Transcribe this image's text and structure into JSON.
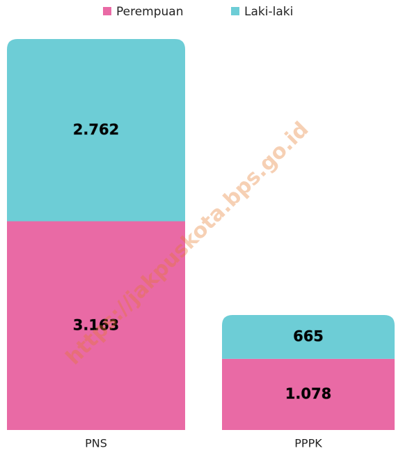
{
  "chart_data": {
    "type": "stacked-bar",
    "categories": [
      "PNS",
      "PPPK"
    ],
    "series": [
      {
        "name": "Perempuan",
        "color": "#e96aa5",
        "values": [
          3163,
          1078
        ],
        "value_labels": [
          "3.163",
          "1.078"
        ]
      },
      {
        "name": "Laki-laki",
        "color": "#6dcdd6",
        "values": [
          2762,
          665
        ],
        "value_labels": [
          "2.762",
          "665"
        ]
      }
    ],
    "legend": "top",
    "watermark": "https://jakpuskota.bps.go.id"
  }
}
